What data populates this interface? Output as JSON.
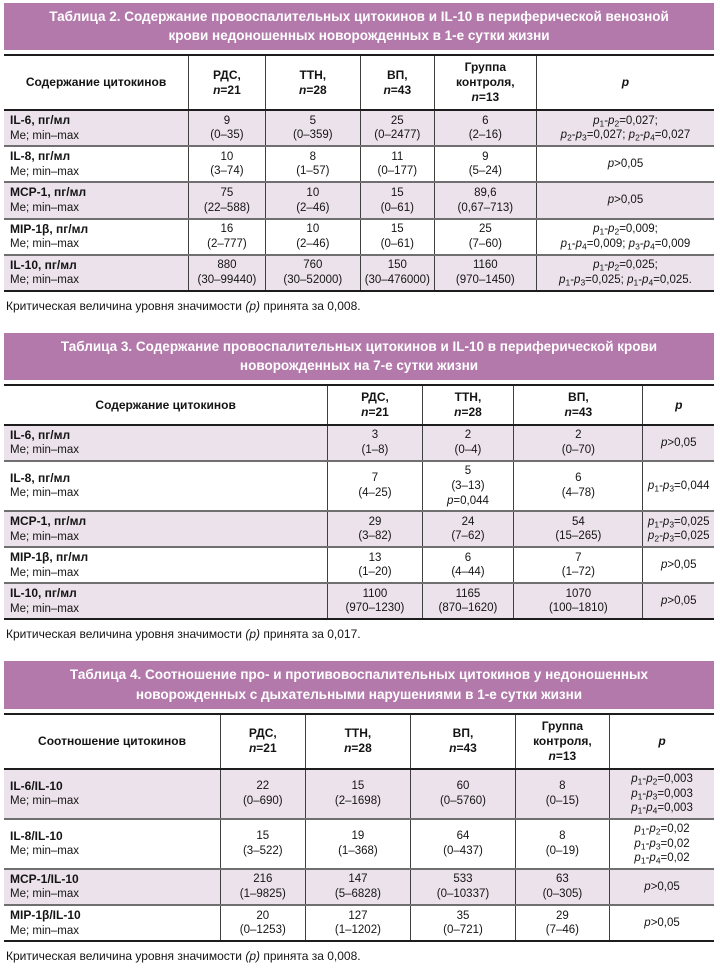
{
  "colors": {
    "accent": "#b379ab",
    "stripe": "#ece2eb",
    "header_border": "#1d1d1d",
    "row_separator": "#6f6f6f"
  },
  "tables": [
    {
      "title": "Таблица 2. Содержание провоспалительных цитокинов и IL-10 в периферической венозной крови недоношенных новорожденных в 1-е сутки жизни",
      "header": [
        [
          "Содержание цитокинов"
        ],
        [
          "РДС,",
          "n=21"
        ],
        [
          "ТТН,",
          "n=28"
        ],
        [
          "ВП,",
          "n=43"
        ],
        [
          "Группа",
          "контроля,",
          "n=13"
        ],
        [
          "p"
        ]
      ],
      "rows": [
        {
          "label": "IL-6, пг/мл",
          "sublabel": "Me; min–max",
          "values": [
            [
              "9",
              "(0–35)"
            ],
            [
              "5",
              "(0–359)"
            ],
            [
              "25",
              "(0–2477)"
            ],
            [
              "6",
              "(2–16)"
            ]
          ],
          "p": [
            "p₁-p₂=0,027;",
            "p₂-p₃=0,027; p₂-p₄=0,027"
          ]
        },
        {
          "label": "IL-8, пг/мл",
          "sublabel": "Me; min–max",
          "values": [
            [
              "10",
              "(3–74)"
            ],
            [
              "8",
              "(1–57)"
            ],
            [
              "11",
              "(0–177)"
            ],
            [
              "9",
              "(5–24)"
            ]
          ],
          "p": [
            "p>0,05"
          ]
        },
        {
          "label": "MCP-1, пг/мл",
          "sublabel": "Me; min–max",
          "values": [
            [
              "75",
              "(22–588)"
            ],
            [
              "10",
              "(2–46)"
            ],
            [
              "15",
              "(0–61)"
            ],
            [
              "89,6",
              "(0,67–713)"
            ]
          ],
          "p": [
            "p>0,05"
          ]
        },
        {
          "label": "MIP-1β, пг/мл",
          "sublabel": "Me; min–max",
          "values": [
            [
              "16",
              "(2–777)"
            ],
            [
              "10",
              "(2–46)"
            ],
            [
              "15",
              "(0–61)"
            ],
            [
              "25",
              "(7–60)"
            ]
          ],
          "p": [
            "p₁-p₂=0,009;",
            "p₁-p₄=0,009; p₃-p₄=0,009"
          ]
        },
        {
          "label": "IL-10, пг/мл",
          "sublabel": "Me; min–max",
          "values": [
            [
              "880",
              "(30–99440)"
            ],
            [
              "760",
              "(30–52000)"
            ],
            [
              "150",
              "(30–476000)"
            ],
            [
              "1160",
              "(970–1450)"
            ]
          ],
          "p": [
            "p₁-p₂=0,025;",
            "p₁-p₃=0,025; p₁-p₄=0,025."
          ]
        }
      ],
      "footnote": "Критическая величина уровня значимости (p) принята за 0,008."
    },
    {
      "title": "Таблица 3. Содержание провоспалительных цитокинов и IL-10 в периферической крови новорожденных на 7-е сутки жизни",
      "header": [
        [
          "Содержание цитокинов"
        ],
        [
          "РДС,",
          "n=21"
        ],
        [
          "ТТН,",
          "n=28"
        ],
        [
          "ВП,",
          "n=43"
        ],
        [
          "p"
        ]
      ],
      "rows": [
        {
          "label": "IL-6, пг/мл",
          "sublabel": "Me; min–max",
          "values": [
            [
              "3",
              "(1–8)"
            ],
            [
              "2",
              "(0–4)"
            ],
            [
              "2",
              "(0–70)"
            ]
          ],
          "p": [
            "p>0,05"
          ]
        },
        {
          "label": "IL-8, пг/мл",
          "sublabel": "Me; min–max",
          "values": [
            [
              "7",
              "(4–25)"
            ],
            [
              "5",
              "(3–13)",
              "p=0,044"
            ],
            [
              "6",
              "(4–78)"
            ]
          ],
          "p": [
            "p₁-p₃=0,044"
          ]
        },
        {
          "label": "MCP-1, пг/мл",
          "sublabel": "Me; min–max",
          "values": [
            [
              "29",
              "(3–82)"
            ],
            [
              "24",
              "(7–62)"
            ],
            [
              "54",
              "(15–265)"
            ]
          ],
          "p": [
            "p₁-p₃=0,025",
            "p₂-p₃=0,025"
          ]
        },
        {
          "label": "MIP-1β, пг/мл",
          "sublabel": "Me; min–max",
          "values": [
            [
              "13",
              "(1–20)"
            ],
            [
              "6",
              "(4–44)"
            ],
            [
              "7",
              "(1–72)"
            ]
          ],
          "p": [
            "p>0,05"
          ]
        },
        {
          "label": "IL-10, пг/мл",
          "sublabel": "Me; min–max",
          "values": [
            [
              "1100",
              "(970–1230)"
            ],
            [
              "1165",
              "(870–1620)"
            ],
            [
              "1070",
              "(100–1810)"
            ]
          ],
          "p": [
            "p>0,05"
          ]
        }
      ],
      "footnote": "Критическая величина уровня значимости (p) принята за 0,017."
    },
    {
      "title": "Таблица 4. Соотношение про- и противовоспалительных цитокинов у недоношенных новорожденных с дыхательными нарушениями в 1-е сутки жизни",
      "header": [
        [
          "Соотношение цитокинов"
        ],
        [
          "РДС,",
          "n=21"
        ],
        [
          "ТТН,",
          "n=28"
        ],
        [
          "ВП,",
          "n=43"
        ],
        [
          "Группа",
          "контроля,",
          "n=13"
        ],
        [
          "p"
        ]
      ],
      "rows": [
        {
          "label": "IL-6/IL-10",
          "sublabel": "Me; min–max",
          "values": [
            [
              "22",
              "(0–690)"
            ],
            [
              "15",
              "(2–1698)"
            ],
            [
              "60",
              "(0–5760)"
            ],
            [
              "8",
              "(0–15)"
            ]
          ],
          "p": [
            "p₁-p₂=0,003",
            "p₁-p₃=0,003",
            "p₁-p₄=0,003"
          ]
        },
        {
          "label": "IL-8/IL-10",
          "sublabel": "Me; min–max",
          "values": [
            [
              "15",
              "(3–522)"
            ],
            [
              "19",
              "(1–368)"
            ],
            [
              "64",
              "(0–437)"
            ],
            [
              "8",
              "(0–19)"
            ]
          ],
          "p": [
            "p₁-p₂=0,02",
            "p₁-p₃=0,02",
            "p₁-p₄=0,02"
          ]
        },
        {
          "label": "MCP-1/IL-10",
          "sublabel": "Me; min–max",
          "values": [
            [
              "216",
              "(1–9825)"
            ],
            [
              "147",
              "(5–6828)"
            ],
            [
              "533",
              "(0–10337)"
            ],
            [
              "63",
              "(0–305)"
            ]
          ],
          "p": [
            "p>0,05"
          ]
        },
        {
          "label": "MIP-1β/IL-10",
          "sublabel": "Me; min–max",
          "values": [
            [
              "20",
              "(0–1253)"
            ],
            [
              "127",
              "(1–1202)"
            ],
            [
              "35",
              "(0–721)"
            ],
            [
              "29",
              "(7–46)"
            ]
          ],
          "p": [
            "p>0,05"
          ]
        }
      ],
      "footnote": "Критическая величина уровня значимости (p) принята за 0,008."
    }
  ]
}
